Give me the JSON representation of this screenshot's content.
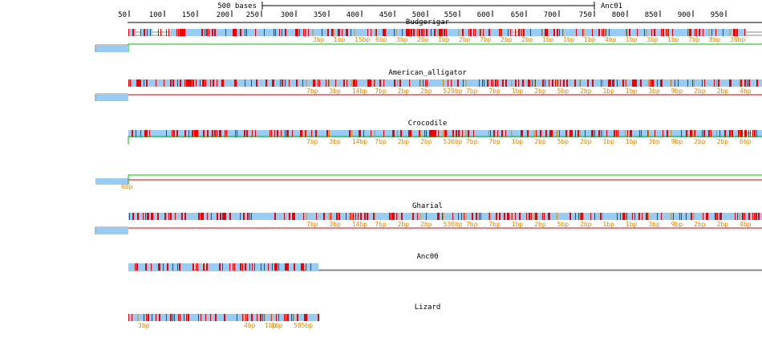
{
  "scale_bar": {
    "label": "500 bases",
    "reference": "Anc01"
  },
  "ruler": {
    "ticks": [
      "50",
      "100",
      "150",
      "200",
      "250",
      "300",
      "350",
      "400",
      "450",
      "500",
      "550",
      "600",
      "650",
      "700",
      "750",
      "800",
      "850",
      "900",
      "950"
    ]
  },
  "colors": {
    "block": "#99ccf5",
    "snp": "#ee0000",
    "insertion": "#dd8800",
    "ruler": "#000000",
    "rail": "#888888",
    "dup_green": "#00bb00",
    "dup_red": "#cc0000"
  },
  "tracks": [
    {
      "name": "Budgerigar",
      "labels": [
        "3bp",
        "1bp",
        "15bp",
        "6bp",
        "3bp",
        "2bp",
        "1bp",
        "2bp",
        "7bp",
        "2bp",
        "2bp",
        "1bp",
        "1bp",
        "1bp",
        "4bp",
        "1bp",
        "3bp",
        "1bp",
        "7bp",
        "8bp",
        "36bp",
        "6bp"
      ]
    },
    {
      "name": "American_alligator",
      "labels": [
        "7bp",
        "3bp",
        "14bp",
        "7bp",
        "2bp",
        "2bp",
        "529bp",
        "7bp",
        "7bp",
        "1bp",
        "2bp",
        "5bp",
        "2bp",
        "1bp",
        "1bp",
        "3bp",
        "9bp",
        "2bp",
        "2bp",
        "4bp"
      ]
    },
    {
      "name": "Crocodile",
      "labels": [
        "7bp",
        "3bp",
        "14bp",
        "7bp",
        "2bp",
        "2bp",
        "536bp",
        "7bp",
        "7bp",
        "1bp",
        "2bp",
        "5bp",
        "2bp",
        "1bp",
        "1bp",
        "3bp",
        "9bp",
        "2bp",
        "2bp",
        "6bp"
      ]
    },
    {
      "name": "Gharial",
      "labels": [
        "7bp",
        "3bp",
        "14bp",
        "7bp",
        "2bp",
        "2bp",
        "536bp",
        "7bp",
        "7bp",
        "1bp",
        "2bp",
        "5bp",
        "2bp",
        "1bp",
        "1bp",
        "3bp",
        "9bp",
        "2bp",
        "2bp",
        "4bp"
      ]
    },
    {
      "name": "Anc00",
      "labels": []
    },
    {
      "name": "Lizard",
      "labels": [
        "3bp",
        "4bp",
        "1bp",
        "1bp",
        "585bp"
      ]
    }
  ]
}
